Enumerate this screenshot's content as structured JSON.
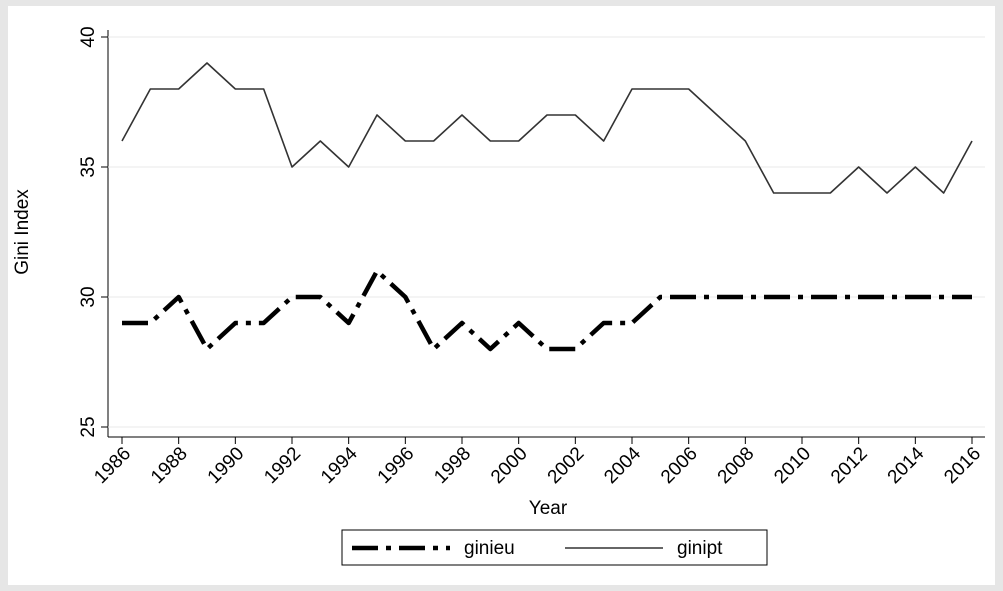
{
  "chart_data": {
    "type": "line",
    "x_label": "Year",
    "y_label": "Gini Index",
    "x": [
      1986,
      1987,
      1988,
      1989,
      1990,
      1991,
      1992,
      1993,
      1994,
      1995,
      1996,
      1997,
      1998,
      1999,
      2000,
      2001,
      2002,
      2003,
      2004,
      2005,
      2006,
      2007,
      2008,
      2009,
      2010,
      2011,
      2012,
      2013,
      2014,
      2015,
      2016
    ],
    "series": [
      {
        "name": "ginieu",
        "color": "#000000",
        "dash": "dashdot",
        "values": [
          29,
          29,
          30,
          28,
          29,
          29,
          30,
          30,
          29,
          31,
          30,
          28,
          29,
          28,
          29,
          28,
          28,
          29,
          29,
          30,
          30,
          30,
          30,
          30,
          30,
          30,
          30,
          30,
          30,
          30,
          30
        ]
      },
      {
        "name": "ginipt",
        "color": "#333333",
        "dash": "solid",
        "values": [
          36,
          38,
          38,
          39,
          38,
          38,
          35,
          36,
          35,
          37,
          36,
          36,
          37,
          36,
          36,
          37,
          37,
          36,
          38,
          38,
          38,
          37,
          36,
          34,
          34,
          34,
          35,
          34,
          35,
          34,
          36
        ]
      }
    ],
    "xlim": [
      1986,
      2016
    ],
    "xticks": [
      1986,
      1988,
      1990,
      1992,
      1994,
      1996,
      1998,
      2000,
      2002,
      2004,
      2006,
      2008,
      2010,
      2012,
      2014,
      2016
    ],
    "ylim": [
      25,
      40
    ],
    "yticks": [
      25,
      30,
      35,
      40
    ],
    "grid": true,
    "legend": "bottom"
  }
}
